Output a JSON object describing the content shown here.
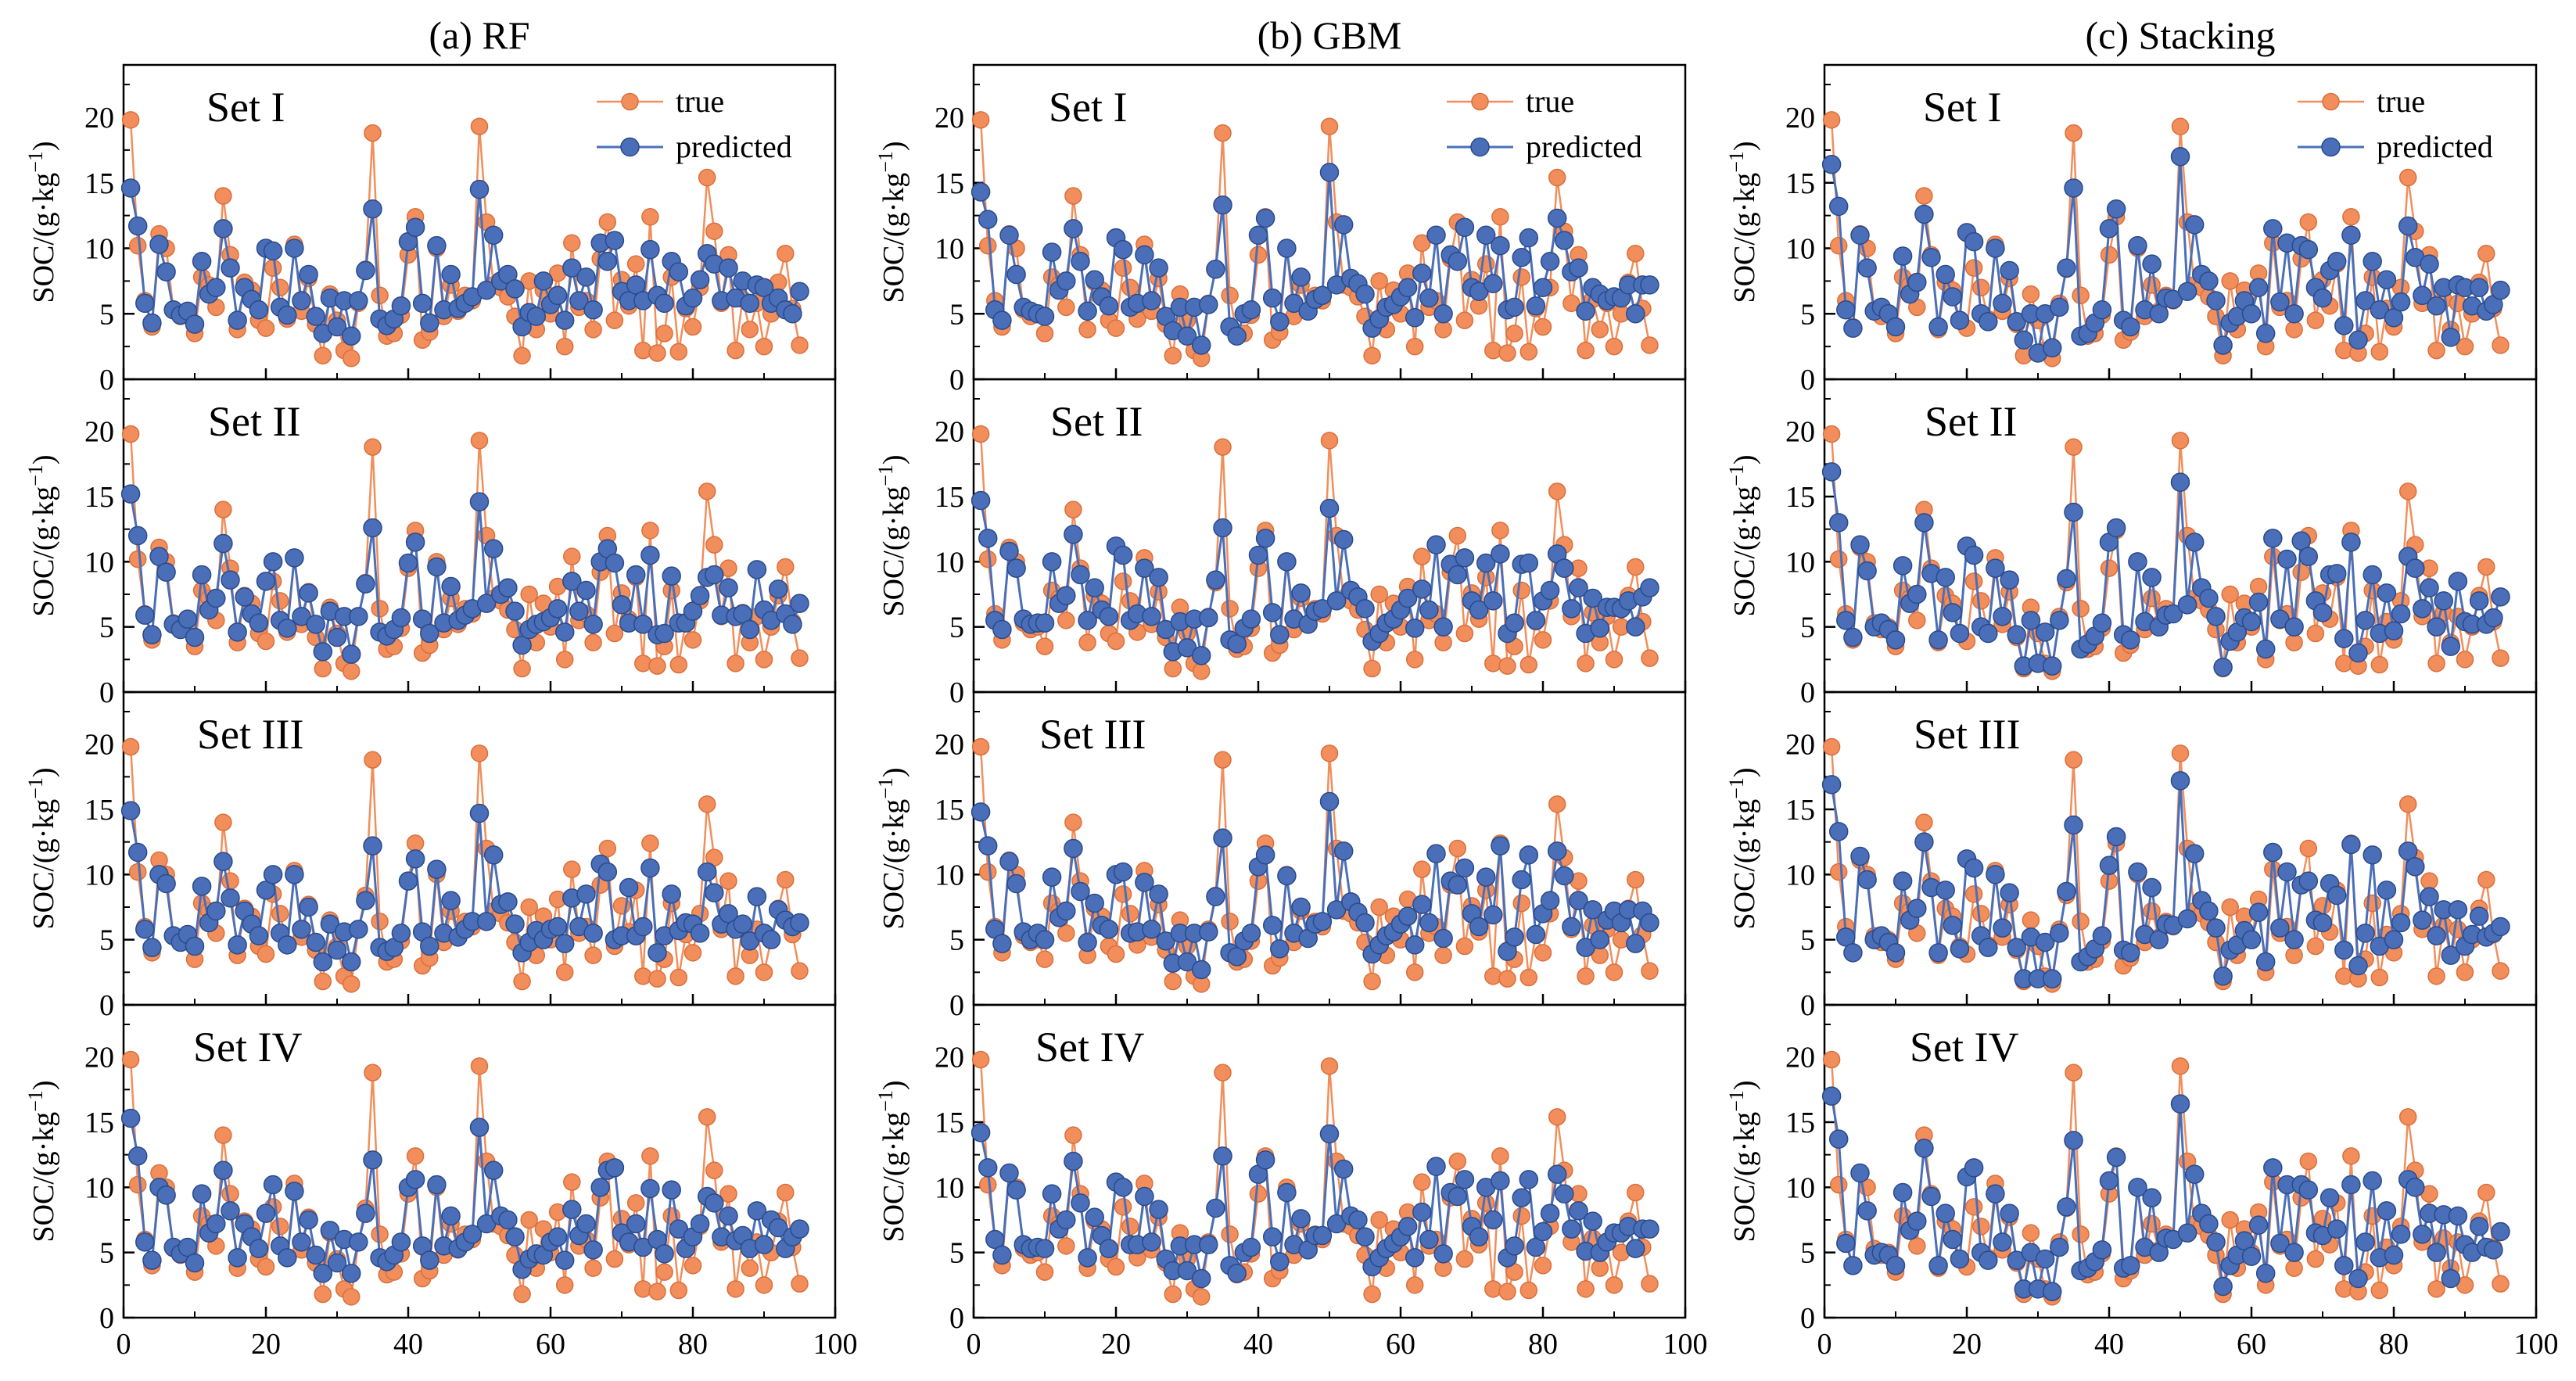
{
  "figure": {
    "columns": [
      "(a) RF",
      "(b) GBM",
      "(c) Stacking"
    ],
    "rows": [
      "Set I",
      "Set II",
      "Set III",
      "Set IV"
    ],
    "ylabel_prefix": "SOC/(g·kg",
    "ylabel_sup": "−1",
    "ylabel_suffix": ")",
    "legend": {
      "true_label": "true",
      "predicted_label": "predicted"
    },
    "colors": {
      "true": "#F28E5B",
      "true_edge": "#D9703E",
      "predicted": "#4A6FB8",
      "predicted_edge": "#2A4A8A"
    }
  },
  "chart_data": {
    "type": "line",
    "x_range": [
      0,
      100
    ],
    "y_range": [
      0,
      24
    ],
    "x_ticks": [
      0,
      20,
      40,
      60,
      80,
      100
    ],
    "y_ticks": [
      0,
      5,
      10,
      15,
      20
    ],
    "x_ticks_shown_on_bottom_row_only": true,
    "true": [
      19.8,
      10.2,
      6.0,
      4.0,
      11.1,
      10.0,
      5.3,
      4.8,
      5.0,
      3.5,
      7.8,
      7.2,
      5.5,
      14.0,
      9.5,
      3.8,
      7.4,
      6.8,
      4.5,
      3.9,
      8.5,
      7.0,
      4.6,
      10.3,
      5.2,
      7.7,
      4.2,
      1.8,
      6.5,
      4.5,
      2.2,
      1.6,
      5.8,
      8.4,
      18.8,
      6.4,
      3.3,
      3.5,
      4.9,
      9.5,
      12.4,
      3.0,
      3.6,
      10.0,
      4.8,
      7.2,
      5.2,
      6.4,
      6.0,
      19.3,
      12.0,
      7.2,
      7.0,
      6.3,
      4.8,
      1.8,
      7.5,
      3.8,
      6.8,
      5.0,
      8.1,
      2.5,
      10.4,
      5.5,
      6.0,
      3.8,
      9.2,
      12.0,
      4.5,
      7.6,
      5.6,
      8.8,
      2.2,
      12.4,
      2.0,
      3.5,
      7.8,
      2.1,
      5.4,
      4.0,
      7.0,
      15.4,
      11.3,
      5.8,
      9.5,
      2.2,
      6.1,
      3.8,
      5.8,
      2.5,
      5.0,
      7.4,
      9.6,
      5.4,
      2.6
    ],
    "predicted": [
      [
        [
          14.6,
          11.7,
          5.8,
          4.3,
          10.3,
          8.2,
          5.3,
          4.9,
          5.2,
          4.2,
          9.0,
          6.5,
          7.0,
          11.5,
          8.5,
          4.5,
          7.0,
          6.1,
          5.3,
          10.0,
          9.8,
          5.5,
          4.9,
          10.0,
          6.0,
          8.0,
          4.8,
          3.5,
          6.2,
          4.0,
          6.0,
          3.3,
          6.0,
          8.3,
          13.0,
          4.6,
          4.1,
          4.6,
          5.6,
          10.5,
          11.6,
          5.8,
          4.3,
          10.2,
          5.3,
          8.0,
          5.4,
          5.8,
          6.3,
          14.5,
          6.8,
          11.0,
          7.5,
          8.0,
          6.9,
          4.0,
          5.1,
          4.8,
          7.5,
          5.7,
          6.4,
          4.5,
          8.5,
          6.0,
          7.8,
          5.3,
          10.4,
          9.0,
          10.6,
          6.7,
          6.0,
          7.2,
          6.0,
          9.9,
          6.4,
          5.8,
          9.0,
          8.2,
          5.6,
          6.2,
          7.6,
          9.6,
          8.8,
          6.0,
          8.5,
          6.2,
          7.5,
          5.8,
          7.2,
          7.0,
          5.8,
          6.2,
          5.3,
          5.0,
          6.7
        ],
        [
          15.2,
          12.0,
          5.9,
          4.4,
          10.4,
          9.2,
          5.2,
          4.8,
          5.6,
          4.2,
          9.0,
          6.3,
          7.2,
          11.4,
          8.6,
          4.6,
          7.3,
          6.0,
          5.3,
          8.5,
          10.0,
          5.5,
          4.9,
          10.3,
          5.8,
          7.6,
          5.2,
          3.1,
          6.2,
          4.2,
          5.8,
          2.9,
          5.8,
          8.3,
          12.6,
          4.6,
          4.3,
          4.8,
          5.7,
          9.9,
          11.5,
          5.6,
          4.5,
          9.6,
          5.3,
          8.1,
          5.5,
          5.9,
          6.4,
          14.6,
          6.8,
          11.0,
          7.5,
          8.0,
          6.2,
          3.6,
          4.8,
          5.2,
          5.4,
          5.7,
          6.4,
          4.6,
          8.5,
          6.2,
          7.8,
          5.2,
          10.0,
          11.0,
          9.9,
          6.7,
          5.3,
          9.0,
          5.2,
          10.5,
          4.4,
          4.5,
          8.9,
          5.3,
          5.3,
          6.2,
          7.4,
          8.8,
          9.0,
          5.9,
          8.0,
          5.8,
          6.0,
          4.8,
          9.4,
          6.3,
          5.5,
          7.9,
          6.0,
          5.2,
          6.8
        ],
        [
          14.9,
          11.7,
          5.8,
          4.4,
          10.0,
          9.3,
          5.3,
          4.8,
          5.4,
          4.5,
          9.1,
          6.3,
          7.2,
          11.0,
          8.2,
          4.6,
          7.2,
          6.2,
          5.3,
          8.8,
          10.0,
          5.5,
          4.6,
          10.0,
          5.8,
          7.5,
          4.8,
          3.3,
          6.2,
          4.2,
          5.6,
          3.3,
          5.8,
          8.0,
          12.2,
          4.4,
          4.1,
          4.4,
          5.5,
          9.5,
          11.2,
          5.6,
          4.5,
          10.4,
          5.5,
          8.0,
          5.2,
          5.8,
          6.4,
          14.7,
          6.4,
          11.5,
          7.7,
          7.9,
          6.2,
          4.0,
          4.8,
          5.7,
          5.0,
          5.8,
          6.0,
          4.7,
          8.2,
          6.0,
          8.5,
          5.5,
          10.8,
          10.2,
          5.0,
          5.3,
          9.0,
          5.3,
          6.0,
          10.5,
          4.0,
          5.3,
          8.5,
          5.7,
          6.3,
          6.2,
          5.5,
          10.2,
          8.6,
          6.2,
          7.0,
          5.8,
          6.2,
          4.9,
          8.3,
          5.5,
          5.0,
          7.3,
          6.5,
          6.0,
          6.3
        ],
        [
          15.3,
          12.4,
          5.8,
          4.4,
          10.0,
          9.4,
          5.4,
          4.9,
          5.4,
          4.2,
          9.5,
          6.5,
          7.2,
          11.3,
          8.2,
          4.6,
          7.2,
          6.2,
          5.3,
          8.0,
          10.2,
          5.5,
          4.6,
          9.7,
          5.8,
          7.5,
          4.8,
          3.4,
          6.7,
          4.2,
          6.0,
          3.4,
          5.8,
          8.0,
          12.1,
          4.6,
          4.3,
          4.8,
          5.8,
          10.0,
          10.6,
          5.5,
          4.4,
          10.2,
          5.5,
          7.8,
          5.3,
          5.8,
          6.4,
          14.6,
          7.2,
          11.3,
          7.8,
          7.5,
          6.2,
          3.7,
          4.5,
          4.9,
          4.8,
          5.8,
          6.2,
          4.4,
          8.3,
          6.3,
          7.2,
          5.2,
          10.0,
          11.3,
          11.5,
          6.5,
          5.8,
          7.2,
          5.4,
          9.9,
          6.0,
          4.9,
          9.8,
          6.8,
          5.3,
          6.2,
          7.2,
          9.3,
          8.8,
          6.2,
          7.8,
          5.9,
          6.3,
          5.3,
          8.2,
          5.6,
          7.5,
          6.9,
          5.3,
          6.2,
          6.8
        ]
      ],
      [
        [
          14.3,
          12.2,
          5.3,
          4.5,
          11.0,
          8.0,
          5.5,
          5.2,
          5.0,
          4.8,
          9.7,
          6.8,
          7.5,
          11.5,
          9.0,
          5.2,
          7.6,
          6.3,
          5.6,
          10.8,
          9.9,
          5.5,
          5.8,
          9.5,
          6.0,
          8.5,
          4.8,
          3.7,
          5.5,
          3.3,
          5.5,
          2.6,
          5.7,
          8.4,
          13.3,
          4.0,
          3.3,
          5.0,
          5.3,
          11.0,
          12.3,
          6.2,
          4.4,
          10.0,
          5.8,
          7.8,
          5.2,
          6.1,
          6.4,
          15.8,
          7.2,
          11.8,
          7.7,
          7.3,
          6.5,
          3.9,
          4.6,
          5.5,
          5.7,
          6.3,
          7.0,
          4.7,
          8.1,
          6.2,
          11.0,
          5.0,
          9.5,
          9.0,
          11.6,
          7.0,
          6.7,
          11.0,
          7.3,
          10.2,
          5.3,
          5.5,
          9.3,
          10.8,
          5.6,
          7.0,
          9.0,
          12.3,
          10.6,
          8.2,
          8.5,
          5.2,
          7.0,
          6.5,
          6.0,
          6.3,
          6.2,
          7.2,
          5.0,
          7.2,
          7.2
        ],
        [
          14.7,
          11.8,
          5.5,
          4.8,
          10.8,
          9.5,
          5.6,
          5.2,
          5.3,
          5.3,
          10.0,
          6.8,
          7.4,
          12.1,
          9.0,
          5.5,
          8.0,
          6.3,
          5.8,
          11.2,
          10.5,
          5.5,
          6.0,
          9.5,
          5.8,
          8.8,
          4.8,
          3.1,
          5.4,
          3.4,
          5.6,
          2.8,
          5.7,
          8.6,
          12.6,
          4.0,
          3.7,
          4.9,
          5.6,
          10.5,
          11.8,
          6.1,
          4.4,
          10.0,
          5.6,
          7.6,
          5.2,
          6.2,
          6.4,
          14.1,
          7.0,
          11.7,
          7.8,
          7.3,
          6.4,
          3.9,
          4.5,
          5.3,
          5.6,
          6.3,
          7.2,
          4.9,
          7.9,
          6.3,
          11.3,
          5.0,
          9.8,
          9.0,
          10.3,
          7.0,
          6.3,
          9.9,
          7.0,
          10.6,
          4.5,
          5.3,
          9.8,
          9.9,
          5.5,
          7.0,
          7.8,
          10.6,
          9.5,
          6.4,
          8.0,
          4.5,
          7.2,
          4.9,
          6.5,
          6.5,
          6.4,
          7.0,
          5.0,
          7.3,
          8.0
        ],
        [
          14.8,
          12.2,
          5.8,
          4.7,
          11.0,
          9.3,
          5.6,
          5.0,
          5.5,
          5.0,
          9.8,
          6.7,
          7.2,
          12.0,
          8.7,
          4.8,
          7.8,
          6.1,
          5.8,
          10.0,
          10.2,
          5.5,
          5.6,
          9.4,
          5.8,
          8.5,
          4.9,
          3.2,
          5.5,
          3.3,
          5.5,
          2.7,
          5.6,
          8.3,
          12.8,
          4.0,
          3.7,
          4.9,
          5.5,
          10.6,
          11.5,
          6.1,
          4.3,
          9.9,
          5.5,
          7.5,
          5.1,
          6.2,
          6.4,
          15.6,
          7.3,
          11.8,
          7.9,
          7.1,
          6.3,
          3.9,
          4.6,
          5.3,
          5.6,
          6.2,
          6.8,
          4.6,
          7.7,
          6.3,
          11.6,
          5.1,
          9.5,
          9.2,
          10.5,
          7.0,
          6.0,
          9.8,
          6.9,
          12.2,
          4.1,
          5.2,
          9.6,
          11.5,
          5.4,
          7.0,
          8.0,
          11.8,
          9.9,
          6.0,
          8.0,
          4.4,
          7.3,
          5.0,
          6.5,
          7.2,
          6.3,
          7.3,
          4.7,
          7.2,
          6.3
        ],
        [
          14.2,
          11.5,
          6.0,
          4.8,
          11.1,
          9.8,
          5.6,
          5.3,
          5.4,
          5.3,
          9.5,
          6.8,
          7.5,
          12.0,
          8.8,
          4.6,
          7.7,
          6.3,
          5.3,
          10.4,
          10.0,
          5.6,
          5.6,
          9.3,
          5.8,
          8.3,
          4.5,
          3.6,
          5.5,
          3.6,
          5.6,
          3.0,
          5.6,
          8.4,
          12.4,
          4.0,
          3.4,
          5.0,
          5.4,
          11.0,
          12.1,
          6.2,
          4.3,
          9.6,
          5.6,
          7.6,
          5.2,
          6.3,
          6.3,
          14.1,
          7.2,
          11.4,
          7.8,
          7.5,
          6.2,
          3.9,
          4.6,
          5.3,
          5.7,
          6.2,
          7.0,
          4.6,
          8.1,
          6.0,
          11.6,
          4.9,
          9.6,
          9.3,
          10.6,
          7.0,
          6.2,
          10.0,
          7.5,
          10.5,
          4.6,
          5.5,
          9.2,
          10.6,
          5.4,
          6.6,
          8.0,
          11.0,
          9.5,
          6.8,
          8.2,
          5.1,
          7.4,
          5.0,
          5.8,
          6.5,
          6.5,
          7.0,
          5.3,
          6.8,
          6.8
        ]
      ],
      [
        [
          16.4,
          13.2,
          5.3,
          3.9,
          11.0,
          8.5,
          5.2,
          5.5,
          5.0,
          4.0,
          9.4,
          6.5,
          7.4,
          12.6,
          9.3,
          4.0,
          8.0,
          6.3,
          4.5,
          11.2,
          10.5,
          5.0,
          4.4,
          10.0,
          5.8,
          8.3,
          4.4,
          3.0,
          5.0,
          2.0,
          5.0,
          2.4,
          5.5,
          8.5,
          14.6,
          3.3,
          3.5,
          4.3,
          5.3,
          11.5,
          13.0,
          4.5,
          4.0,
          10.2,
          5.3,
          8.8,
          5.0,
          6.2,
          6.1,
          17.0,
          6.7,
          11.8,
          8.0,
          7.5,
          6.0,
          2.6,
          4.3,
          4.8,
          6.0,
          5.0,
          7.0,
          3.5,
          11.5,
          5.9,
          10.4,
          5.0,
          10.2,
          9.9,
          7.0,
          6.2,
          8.3,
          9.0,
          4.1,
          11.0,
          3.0,
          6.0,
          9.0,
          5.3,
          7.6,
          4.7,
          5.9,
          11.7,
          9.3,
          6.4,
          8.8,
          5.6,
          7.0,
          3.2,
          7.2,
          7.0,
          5.6,
          7.0,
          5.2,
          5.7,
          6.8
        ],
        [
          16.9,
          13.0,
          5.5,
          4.2,
          11.3,
          9.3,
          5.0,
          5.3,
          4.8,
          4.0,
          9.7,
          6.8,
          7.5,
          13.0,
          9.1,
          4.0,
          8.8,
          6.1,
          4.5,
          11.2,
          10.5,
          5.0,
          4.5,
          9.5,
          5.8,
          8.6,
          4.4,
          2.0,
          5.5,
          2.2,
          4.6,
          2.0,
          5.5,
          8.7,
          13.8,
          3.3,
          3.7,
          4.3,
          5.3,
          11.5,
          12.6,
          4.4,
          4.0,
          10.0,
          5.4,
          8.8,
          5.0,
          5.9,
          6.0,
          16.1,
          6.7,
          11.5,
          8.0,
          7.2,
          5.8,
          1.9,
          3.9,
          4.6,
          5.7,
          5.4,
          6.9,
          3.3,
          11.8,
          5.6,
          10.2,
          5.0,
          11.6,
          10.4,
          7.0,
          6.1,
          9.0,
          9.1,
          4.1,
          11.5,
          3.0,
          5.5,
          9.0,
          4.5,
          7.6,
          4.7,
          6.0,
          10.4,
          9.5,
          6.4,
          8.0,
          5.0,
          7.0,
          3.5,
          8.5,
          5.4,
          5.2,
          7.0,
          5.2,
          5.7,
          7.3
        ],
        [
          16.9,
          13.3,
          5.2,
          4.0,
          11.4,
          9.6,
          5.0,
          5.3,
          4.8,
          4.0,
          9.5,
          6.5,
          7.4,
          12.5,
          9.0,
          4.0,
          8.8,
          6.1,
          4.3,
          11.2,
          10.5,
          5.3,
          4.4,
          10.0,
          5.9,
          8.6,
          4.4,
          2.0,
          5.2,
          2.0,
          4.8,
          2.0,
          5.5,
          8.7,
          13.8,
          3.3,
          3.7,
          4.3,
          5.3,
          10.7,
          12.9,
          4.2,
          4.0,
          10.2,
          5.4,
          9.0,
          5.0,
          6.2,
          6.1,
          17.2,
          6.6,
          11.6,
          8.0,
          7.2,
          5.9,
          2.2,
          4.2,
          4.6,
          5.7,
          5.0,
          7.1,
          3.3,
          11.7,
          5.9,
          10.2,
          5.0,
          9.2,
          9.5,
          6.5,
          6.3,
          9.3,
          8.4,
          4.2,
          12.3,
          3.0,
          5.5,
          11.5,
          4.5,
          8.8,
          5.0,
          6.3,
          11.8,
          10.6,
          6.5,
          8.3,
          5.3,
          7.3,
          3.8,
          7.3,
          4.5,
          5.4,
          6.8,
          5.2,
          5.5,
          6.0
        ],
        [
          17.0,
          13.7,
          5.7,
          4.0,
          11.1,
          8.2,
          4.8,
          5.0,
          4.8,
          4.0,
          9.6,
          6.7,
          7.4,
          13.0,
          9.3,
          4.0,
          8.0,
          6.0,
          4.5,
          10.8,
          11.5,
          5.0,
          4.4,
          9.5,
          5.8,
          8.0,
          4.4,
          2.2,
          5.0,
          2.2,
          4.5,
          2.0,
          5.4,
          8.5,
          13.6,
          3.6,
          3.8,
          4.3,
          5.2,
          10.5,
          12.3,
          3.8,
          4.0,
          10.0,
          5.4,
          9.2,
          5.0,
          6.1,
          6.0,
          16.4,
          6.5,
          11.0,
          8.0,
          7.2,
          5.8,
          2.4,
          4.0,
          4.8,
          5.9,
          4.7,
          7.1,
          3.4,
          11.5,
          5.7,
          10.2,
          5.0,
          10.2,
          9.8,
          6.5,
          6.3,
          9.2,
          6.8,
          4.0,
          10.2,
          3.0,
          5.8,
          10.5,
          4.6,
          8.2,
          4.8,
          6.4,
          10.6,
          10.0,
          6.4,
          8.0,
          5.0,
          7.9,
          3.0,
          7.8,
          5.6,
          5.0,
          7.0,
          5.4,
          5.2,
          6.6
        ]
      ]
    ]
  }
}
